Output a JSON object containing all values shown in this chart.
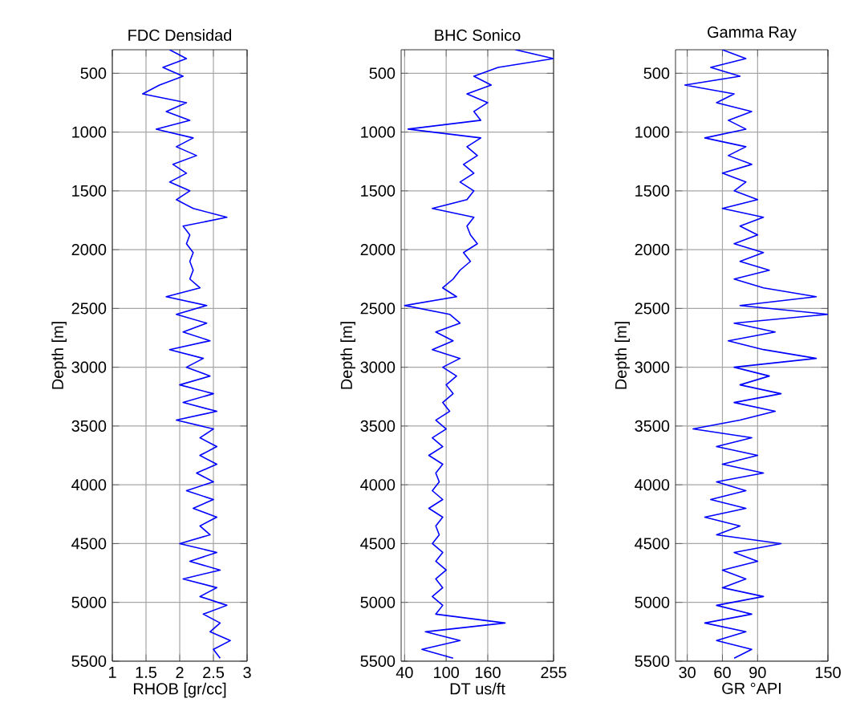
{
  "chart_data": [
    {
      "type": "line",
      "title": "FDC Densidad",
      "xlabel": "RHOB [gr/cc]",
      "ylabel": "Depth [m]",
      "xlim": [
        1,
        3
      ],
      "xticks": [
        1,
        1.5,
        2,
        2.5,
        3
      ],
      "ylim": [
        5500,
        300
      ],
      "yticks": [
        500,
        1000,
        1500,
        2000,
        2500,
        3000,
        3500,
        4000,
        4500,
        5000,
        5500
      ],
      "grid": true,
      "series": [
        {
          "color": "#0000ff",
          "x": [
            1.85,
            2.1,
            1.75,
            2.05,
            1.7,
            1.45,
            2.1,
            1.8,
            2.15,
            1.65,
            2.2,
            1.95,
            2.25,
            1.9,
            2.1,
            1.85,
            2.15,
            1.95,
            2.2,
            2.7,
            2.05,
            2.15,
            2.1,
            2.2,
            2.15,
            2.2,
            2.15,
            2.3,
            1.8,
            2.4,
            1.95,
            2.4,
            2.05,
            2.45,
            1.85,
            2.35,
            2.1,
            2.45,
            2.0,
            2.5,
            2.05,
            2.55,
            1.95,
            2.5,
            2.3,
            2.55,
            2.3,
            2.55,
            2.25,
            2.5,
            2.1,
            2.5,
            2.2,
            2.55,
            2.3,
            2.45,
            2.0,
            2.55,
            2.15,
            2.6,
            2.05,
            2.55,
            2.3,
            2.7,
            2.35,
            2.6,
            2.45,
            2.75,
            2.5,
            2.6
          ],
          "values": [
            300,
            375,
            450,
            525,
            600,
            675,
            750,
            825,
            900,
            975,
            1050,
            1125,
            1200,
            1275,
            1350,
            1425,
            1500,
            1575,
            1650,
            1725,
            1800,
            1875,
            1950,
            2025,
            2100,
            2175,
            2250,
            2325,
            2400,
            2475,
            2550,
            2625,
            2700,
            2775,
            2850,
            2925,
            3000,
            3075,
            3150,
            3225,
            3300,
            3375,
            3450,
            3525,
            3600,
            3675,
            3750,
            3825,
            3900,
            3975,
            4050,
            4125,
            4200,
            4275,
            4350,
            4425,
            4500,
            4575,
            4650,
            4725,
            4800,
            4875,
            4950,
            5025,
            5100,
            5175,
            5250,
            5325,
            5400,
            5475
          ]
        }
      ]
    },
    {
      "type": "line",
      "title": "BHC Sonico",
      "xlabel": "DT us/ft",
      "ylabel": "Depth [m]",
      "xlim": [
        35,
        255
      ],
      "xticks": [
        40,
        100,
        160,
        255
      ],
      "ylim": [
        5500,
        300
      ],
      "yticks": [
        500,
        1000,
        1500,
        2000,
        2500,
        3000,
        3500,
        4000,
        4500,
        5000,
        5500
      ],
      "grid": true,
      "series": [
        {
          "color": "#0000ff",
          "x": [
            200,
            255,
            175,
            140,
            165,
            130,
            160,
            140,
            150,
            45,
            150,
            130,
            145,
            125,
            140,
            120,
            140,
            130,
            80,
            140,
            130,
            135,
            145,
            125,
            135,
            120,
            110,
            95,
            115,
            40,
            105,
            120,
            85,
            110,
            80,
            120,
            95,
            115,
            100,
            110,
            95,
            105,
            85,
            100,
            80,
            95,
            75,
            95,
            85,
            90,
            80,
            95,
            75,
            95,
            85,
            90,
            80,
            95,
            85,
            100,
            85,
            95,
            80,
            95,
            85,
            185,
            70,
            120,
            65,
            110
          ],
          "values": [
            300,
            375,
            450,
            525,
            600,
            675,
            750,
            825,
            900,
            975,
            1050,
            1125,
            1200,
            1275,
            1350,
            1425,
            1500,
            1575,
            1650,
            1725,
            1800,
            1875,
            1950,
            2025,
            2100,
            2175,
            2250,
            2325,
            2400,
            2475,
            2550,
            2625,
            2700,
            2775,
            2850,
            2925,
            3000,
            3075,
            3150,
            3225,
            3300,
            3375,
            3450,
            3525,
            3600,
            3675,
            3750,
            3825,
            3900,
            3975,
            4050,
            4125,
            4200,
            4275,
            4350,
            4425,
            4500,
            4575,
            4650,
            4725,
            4800,
            4875,
            4950,
            5025,
            5100,
            5175,
            5250,
            5325,
            5400,
            5475
          ]
        }
      ]
    },
    {
      "type": "line",
      "title": "Gamma Ray",
      "xlabel": "GR °API",
      "ylabel": "Depth [m]",
      "xlim": [
        20,
        150
      ],
      "xticks": [
        30,
        60,
        90,
        150
      ],
      "ylim": [
        5500,
        300
      ],
      "yticks": [
        500,
        1000,
        1500,
        2000,
        2500,
        3000,
        3500,
        4000,
        4500,
        5000,
        5500
      ],
      "grid": true,
      "series": [
        {
          "color": "#0000ff",
          "x": [
            60,
            80,
            50,
            75,
            28,
            70,
            55,
            85,
            65,
            80,
            45,
            80,
            65,
            85,
            60,
            80,
            70,
            90,
            60,
            95,
            75,
            90,
            70,
            95,
            75,
            100,
            70,
            95,
            140,
            75,
            150,
            70,
            105,
            65,
            95,
            140,
            70,
            100,
            75,
            110,
            70,
            105,
            75,
            35,
            85,
            55,
            90,
            60,
            95,
            55,
            80,
            50,
            80,
            45,
            75,
            55,
            110,
            70,
            90,
            60,
            80,
            60,
            95,
            55,
            85,
            45,
            80,
            55,
            85,
            70
          ],
          "values": [
            300,
            375,
            450,
            525,
            600,
            675,
            750,
            825,
            900,
            975,
            1050,
            1125,
            1200,
            1275,
            1350,
            1425,
            1500,
            1575,
            1650,
            1725,
            1800,
            1875,
            1950,
            2025,
            2100,
            2175,
            2250,
            2325,
            2400,
            2475,
            2550,
            2625,
            2700,
            2775,
            2850,
            2925,
            3000,
            3075,
            3150,
            3225,
            3300,
            3375,
            3450,
            3525,
            3600,
            3675,
            3750,
            3825,
            3900,
            3975,
            4050,
            4125,
            4200,
            4275,
            4350,
            4425,
            4500,
            4575,
            4650,
            4725,
            4800,
            4875,
            4950,
            5025,
            5100,
            5175,
            5250,
            5325,
            5400,
            5475
          ]
        }
      ]
    }
  ]
}
